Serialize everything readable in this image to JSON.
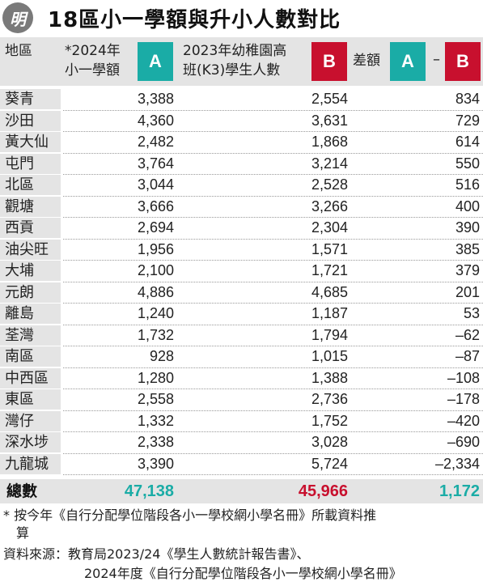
{
  "logo_text": "明",
  "title": "18區小一學額與升小人數對比",
  "header": {
    "district": "地區",
    "col_a_line1": "*2024年",
    "col_a_line2": "小一學額",
    "col_a_badge": "A",
    "col_b_line1": "2023年幼稚園高",
    "col_b_line2": "班(K3)學生人數",
    "col_b_badge": "B",
    "diff_label": "差額",
    "diff_badge_a": "A",
    "diff_minus": "–",
    "diff_badge_b": "B"
  },
  "rows": [
    {
      "district": "葵青",
      "a": "3,388",
      "b": "2,554",
      "diff": "834"
    },
    {
      "district": "沙田",
      "a": "4,360",
      "b": "3,631",
      "diff": "729"
    },
    {
      "district": "黃大仙",
      "a": "2,482",
      "b": "1,868",
      "diff": "614"
    },
    {
      "district": "屯門",
      "a": "3,764",
      "b": "3,214",
      "diff": "550"
    },
    {
      "district": "北區",
      "a": "3,044",
      "b": "2,528",
      "diff": "516"
    },
    {
      "district": "觀塘",
      "a": "3,666",
      "b": "3,266",
      "diff": "400"
    },
    {
      "district": "西貢",
      "a": "2,694",
      "b": "2,304",
      "diff": "390"
    },
    {
      "district": "油尖旺",
      "a": "1,956",
      "b": "1,571",
      "diff": "385"
    },
    {
      "district": "大埔",
      "a": "2,100",
      "b": "1,721",
      "diff": "379"
    },
    {
      "district": "元朗",
      "a": "4,886",
      "b": "4,685",
      "diff": "201"
    },
    {
      "district": "離島",
      "a": "1,240",
      "b": "1,187",
      "diff": "53"
    },
    {
      "district": "荃灣",
      "a": "1,732",
      "b": "1,794",
      "diff": "–62"
    },
    {
      "district": "南區",
      "a": "928",
      "b": "1,015",
      "diff": "–87"
    },
    {
      "district": "中西區",
      "a": "1,280",
      "b": "1,388",
      "diff": "–108"
    },
    {
      "district": "東區",
      "a": "2,558",
      "b": "2,736",
      "diff": "–178"
    },
    {
      "district": "灣仔",
      "a": "1,332",
      "b": "1,752",
      "diff": "–420"
    },
    {
      "district": "深水埗",
      "a": "2,338",
      "b": "3,028",
      "diff": "–690"
    },
    {
      "district": "九龍城",
      "a": "3,390",
      "b": "5,724",
      "diff": "–2,334"
    }
  ],
  "total": {
    "label": "總數",
    "a": "47,138",
    "b": "45,966",
    "diff": "1,172"
  },
  "footnote_line1": "* 按今年《自行分配學位階段各小一學校網小學名冊》所載資料推",
  "footnote_line2": "算",
  "source_line1": "資料來源：教育局2023/24《學生人數統計報告書》、",
  "source_line2": "2024年度《自行分配學位階段各小一學校網小學名冊》",
  "colors": {
    "teal": "#1aaca6",
    "red": "#c8102e",
    "header_bg": "#e4e4e4"
  }
}
